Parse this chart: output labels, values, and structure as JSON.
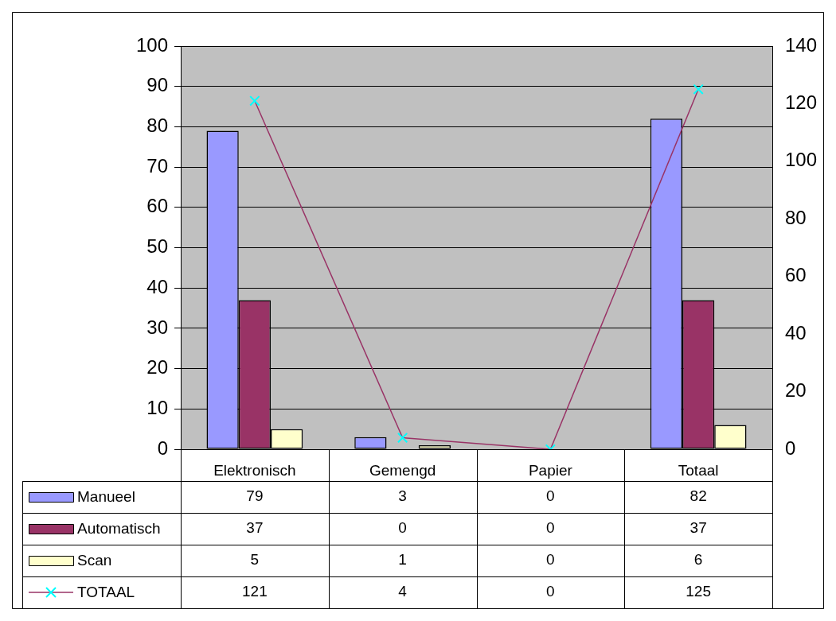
{
  "chart_data": {
    "type": "bar",
    "categories": [
      "Elektronisch",
      "Gemengd",
      "Papier",
      "Totaal"
    ],
    "series": [
      {
        "name": "Manueel",
        "color": "#9999ff",
        "values": [
          79,
          3,
          0,
          82
        ]
      },
      {
        "name": "Automatisch",
        "color": "#993366",
        "values": [
          37,
          0,
          0,
          37
        ]
      },
      {
        "name": "Scan",
        "color": "#ffffcc",
        "values": [
          5,
          1,
          0,
          6
        ]
      },
      {
        "name": "TOTAAL",
        "type": "line",
        "axis": "y2",
        "color": "#993366",
        "colors": [
          "#00ffff",
          "#00ffff",
          "#00ffff",
          "#00ffff"
        ],
        "marker": "cross",
        "values": [
          121,
          4,
          0,
          125
        ]
      }
    ],
    "ylim": [
      0,
      100
    ],
    "yticks": [
      0,
      10,
      20,
      30,
      40,
      50,
      60,
      70,
      80,
      90,
      100
    ],
    "y2lim": [
      0,
      140
    ],
    "y2ticks": [
      0,
      20,
      40,
      60,
      80,
      100,
      120,
      140
    ],
    "grid": "y",
    "legend": "bottom left",
    "data_labels": true
  }
}
